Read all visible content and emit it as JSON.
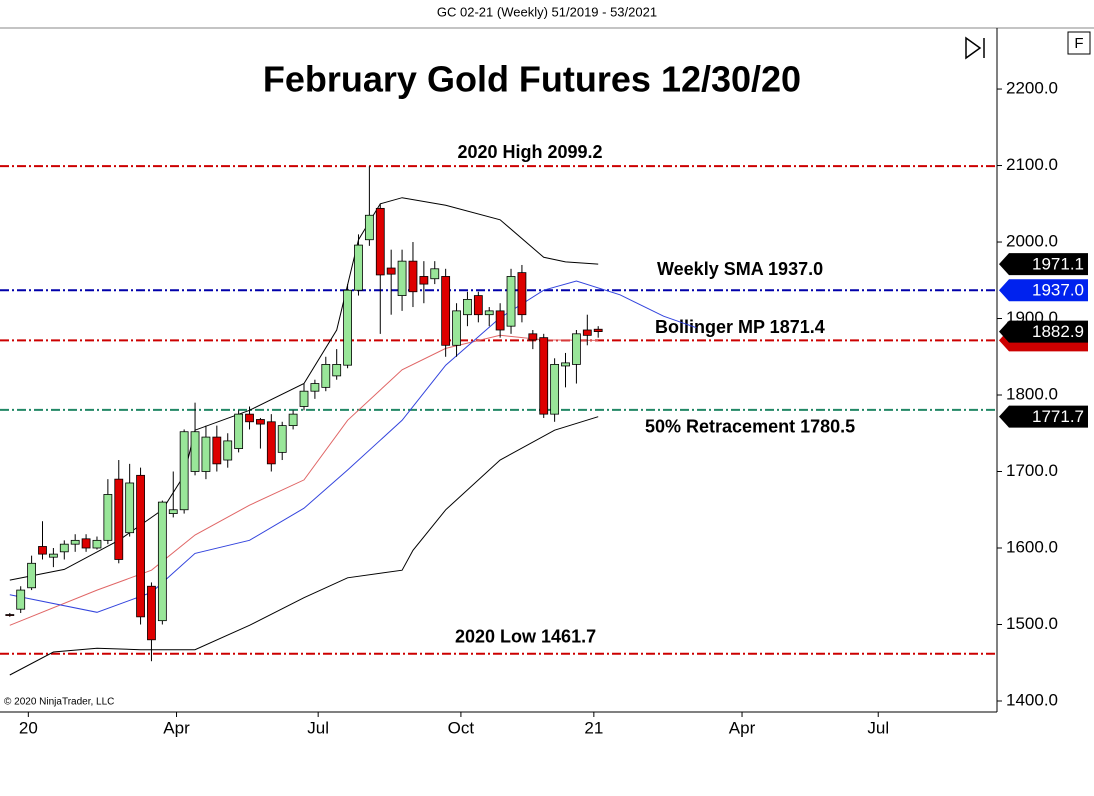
{
  "header": "GC 02-21 (Weekly)  51/2019 - 53/2021",
  "copyright": "© 2020 NinjaTrader, LLC",
  "button": "F",
  "chart_data": {
    "type": "candlestick",
    "title": "February Gold Futures 12/30/20",
    "x": [
      0,
      1,
      2,
      3,
      4,
      5,
      6,
      7,
      8,
      9,
      10,
      11,
      12,
      13,
      14,
      15,
      16,
      17,
      18,
      19,
      20,
      21,
      22,
      23,
      24,
      25,
      26,
      27,
      28,
      29,
      30,
      31,
      32,
      33,
      34,
      35,
      36,
      37,
      38,
      39,
      40,
      41,
      42,
      43,
      44,
      45,
      46,
      47,
      48,
      49,
      50,
      51,
      52,
      53,
      54
    ],
    "open": [
      1513,
      1520,
      1548,
      1602,
      1588,
      1595,
      1605,
      1612,
      1600,
      1610,
      1690,
      1620,
      1695,
      1550,
      1505,
      1645,
      1650,
      1700,
      1700,
      1745,
      1715,
      1730,
      1775,
      1768,
      1765,
      1725,
      1760,
      1785,
      1805,
      1810,
      1825,
      1839,
      1937,
      2003,
      2044,
      1966,
      1930,
      1975,
      1955,
      1952,
      1955,
      1865,
      1905,
      1930,
      1905,
      1910,
      1890,
      1960,
      1880,
      1875,
      1775,
      1838,
      1840,
      1885,
      1886
    ],
    "high": [
      1515,
      1550,
      1590,
      1635,
      1600,
      1610,
      1618,
      1618,
      1615,
      1690,
      1715,
      1710,
      1705,
      1555,
      1662,
      1700,
      1755,
      1790,
      1760,
      1760,
      1750,
      1780,
      1785,
      1770,
      1775,
      1765,
      1780,
      1815,
      1820,
      1850,
      1860,
      1945,
      2010,
      2099,
      2050,
      1990,
      1990,
      2000,
      1975,
      1975,
      1965,
      1920,
      1935,
      1935,
      1915,
      1920,
      1965,
      1970,
      1885,
      1880,
      1848,
      1855,
      1885,
      1905,
      1890
    ],
    "low": [
      1510,
      1515,
      1545,
      1585,
      1575,
      1585,
      1595,
      1595,
      1598,
      1605,
      1580,
      1615,
      1500,
      1452,
      1500,
      1640,
      1645,
      1695,
      1690,
      1700,
      1705,
      1725,
      1755,
      1730,
      1700,
      1715,
      1755,
      1780,
      1795,
      1805,
      1820,
      1835,
      1930,
      1995,
      1880,
      1905,
      1910,
      1915,
      1920,
      1945,
      1850,
      1850,
      1890,
      1895,
      1890,
      1875,
      1880,
      1895,
      1860,
      1770,
      1765,
      1810,
      1815,
      1865,
      1875
    ],
    "close": [
      1512,
      1545,
      1580,
      1592,
      1592,
      1605,
      1610,
      1600,
      1610,
      1670,
      1585,
      1685,
      1510,
      1480,
      1660,
      1650,
      1752,
      1752,
      1745,
      1710,
      1740,
      1775,
      1765,
      1762,
      1710,
      1760,
      1775,
      1805,
      1815,
      1840,
      1840,
      1937,
      1996,
      2035,
      1957,
      1958,
      1975,
      1935,
      1945,
      1965,
      1865,
      1910,
      1925,
      1905,
      1910,
      1885,
      1955,
      1905,
      1872,
      1775,
      1840,
      1842,
      1880,
      1878,
      1882.9
    ],
    "up_color": "#99e699",
    "down_color": "#dd0000",
    "lines": [
      {
        "color": "#000000",
        "x": [
          0,
          5,
          10,
          14,
          16,
          17,
          22,
          27,
          30,
          32,
          34,
          36,
          40,
          45,
          49,
          51,
          54
        ],
        "values": [
          1558,
          1572,
          1610,
          1650,
          1695,
          1754,
          1780,
          1815,
          1885,
          2003,
          2050,
          2058,
          2048,
          2029,
          1980,
          1974,
          1971.1
        ]
      },
      {
        "color": "#e06666",
        "x": [
          0,
          8,
          13,
          17,
          22,
          27,
          31,
          36,
          40,
          45,
          49,
          54
        ],
        "values": [
          1499,
          1545,
          1571,
          1617,
          1656,
          1689,
          1767,
          1833,
          1861,
          1878,
          1872,
          1871.4
        ]
      },
      {
        "color": "#000000",
        "x": [
          0,
          4,
          8,
          12,
          17,
          22,
          27,
          31,
          36,
          37,
          40,
          45,
          50,
          54
        ],
        "values": [
          1434,
          1464,
          1469,
          1467,
          1467,
          1499,
          1535,
          1561,
          1571,
          1597,
          1650,
          1715,
          1754,
          1771.7
        ]
      },
      {
        "color": "#3344dd",
        "x": [
          0,
          8,
          13,
          17,
          22,
          27,
          31,
          36,
          40,
          45,
          49,
          52,
          56,
          60,
          63
        ],
        "values": [
          1539,
          1516,
          1542,
          1593,
          1610,
          1652,
          1702,
          1767,
          1839,
          1901,
          1937,
          1949,
          1931,
          1903,
          1888
        ]
      }
    ],
    "levels": [
      {
        "name": "2020 High 2099.2",
        "value": 2099.2,
        "color": "#cc0000"
      },
      {
        "name": "Weekly SMA 1937.0",
        "value": 1937.0,
        "color": "#0000aa"
      },
      {
        "name": "Bollinger MP 1871.4",
        "value": 1871.4,
        "color": "#cc0000"
      },
      {
        "name": "50% Retracement 1780.5",
        "value": 1780.5,
        "color": "#228866"
      },
      {
        "name": "2020 Low 1461.7",
        "value": 1461.7,
        "color": "#cc0000"
      }
    ],
    "price_tags": {
      "values": [
        1971.1,
        1937.0,
        1882.9,
        1871.4,
        1771.7
      ],
      "value_labels": [
        "1971.1",
        "1937.0",
        "1882.9",
        null,
        "1771.7"
      ],
      "colors": [
        "#000000",
        "#0022ee",
        "#000000",
        "#cc0000",
        "#000000"
      ]
    },
    "xlim": [
      -0.9,
      90.6
    ],
    "xticks": [
      {
        "value": 1.7,
        "label": "20"
      },
      {
        "value": 15.3,
        "label": "Apr"
      },
      {
        "value": 28.3,
        "label": "Jul"
      },
      {
        "value": 41.4,
        "label": "Oct"
      },
      {
        "value": 53.6,
        "label": "21"
      },
      {
        "value": 67.2,
        "label": "Apr"
      },
      {
        "value": 79.7,
        "label": "Jul"
      }
    ],
    "ylim": [
      1385.6,
      2279.8
    ],
    "yticks": [
      {
        "value": 1400,
        "label": "1400.0"
      },
      {
        "value": 1500,
        "label": "1500.0"
      },
      {
        "value": 1600,
        "label": "1600.0"
      },
      {
        "value": 1700,
        "label": "1700.0"
      },
      {
        "value": 1800,
        "label": "1800.0"
      },
      {
        "value": 1900,
        "label": "1900.0"
      },
      {
        "value": 2000,
        "label": "2000.0"
      },
      {
        "value": 2100,
        "label": "2100.0"
      },
      {
        "value": 2200,
        "label": "2200.0"
      }
    ]
  }
}
